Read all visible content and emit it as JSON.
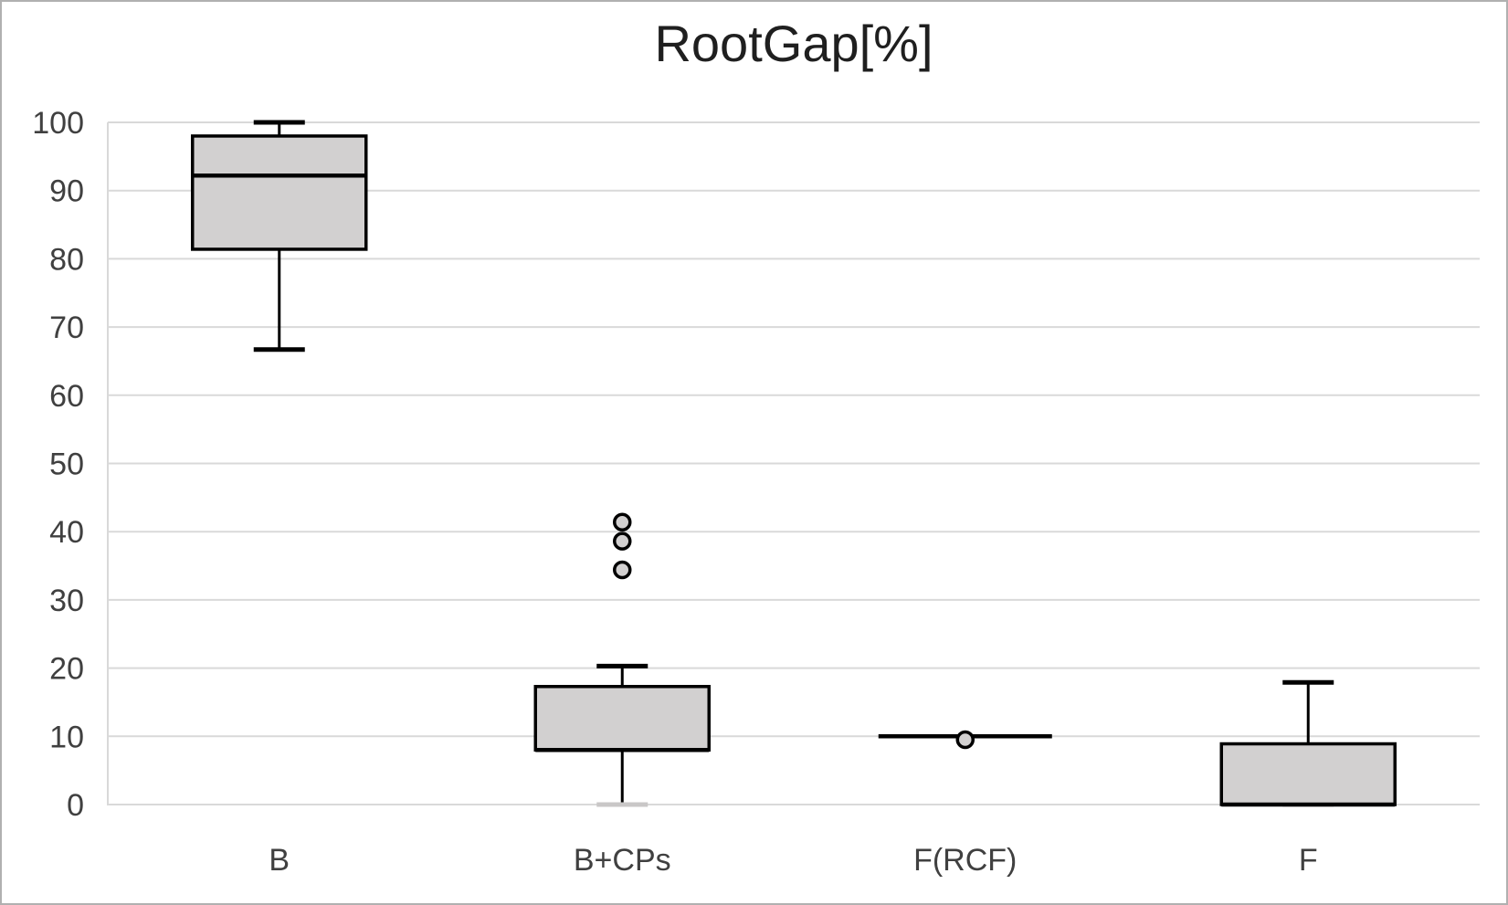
{
  "chart_data": {
    "type": "box",
    "title": "RootGap[%]",
    "categories": [
      "B",
      "B+CPs",
      "F(RCF)",
      "F"
    ],
    "xlabel": "",
    "ylabel": "",
    "ylim": [
      0,
      100
    ],
    "yticks": [
      0,
      10,
      20,
      30,
      40,
      50,
      60,
      70,
      80,
      90,
      100
    ],
    "grid": "horizontal",
    "legend": "none",
    "series": [
      {
        "name": "B",
        "min": 66.7,
        "q1": 81.4,
        "median": 92.2,
        "q3": 98.0,
        "max": 100.0,
        "outliers": []
      },
      {
        "name": "B+CPs",
        "min": 0.0,
        "q1": 8.0,
        "median": 8.0,
        "q3": 17.3,
        "max": 20.3,
        "outliers": [
          41.4,
          38.6,
          34.4
        ]
      },
      {
        "name": "F(RCF)",
        "min": 10.0,
        "q1": 10.0,
        "median": 10.0,
        "q3": 10.0,
        "max": 10.0,
        "outliers": [
          9.5
        ]
      },
      {
        "name": "F",
        "min": 0.0,
        "q1": 0.0,
        "median": 0.0,
        "q3": 8.9,
        "max": 17.9,
        "outliers": []
      }
    ],
    "colors": {
      "background": "#ffffff",
      "frame_border": "#b0b0b0",
      "box_fill": "#d2d0d0",
      "box_stroke": "#000000",
      "outlier_fill": "#d2d0d0",
      "gridline": "#d9d9d9",
      "axis_line": "#d9d9d9",
      "tick_label": "#404040",
      "category_label": "#404040",
      "title": "#1f1f1f",
      "muted_cap": "#c9c7c7"
    }
  }
}
